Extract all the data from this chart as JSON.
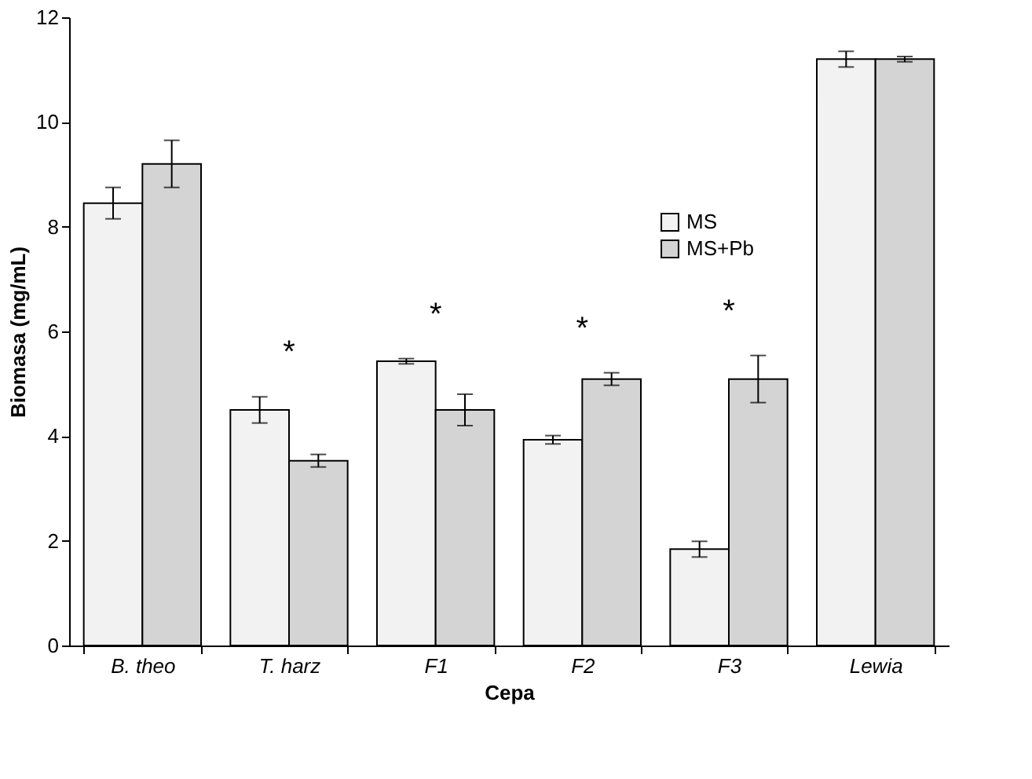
{
  "chart_data": {
    "type": "bar",
    "xlabel": "Cepa",
    "ylabel": "Biomasa (mg/mL)",
    "categories": [
      "B. theo",
      "T. harz",
      "F1",
      "F2",
      "F3",
      "Lewia"
    ],
    "series": [
      {
        "name": "MS",
        "color": "#f2f2f2",
        "values": [
          8.45,
          4.5,
          5.43,
          3.93,
          1.84,
          11.2
        ],
        "errors": [
          0.3,
          0.25,
          0.05,
          0.08,
          0.15,
          0.15
        ]
      },
      {
        "name": "MS+Pb",
        "color": "#d4d4d4",
        "values": [
          9.2,
          3.53,
          4.5,
          5.09,
          5.09,
          11.2
        ],
        "errors": [
          0.45,
          0.12,
          0.3,
          0.12,
          0.45,
          0.05
        ]
      }
    ],
    "ylim": [
      0,
      12
    ],
    "yticks": [
      0,
      2,
      4,
      6,
      8,
      10,
      12
    ],
    "grid": false,
    "legend": "top right",
    "annotations": [
      "*",
      "*",
      "*",
      "*"
    ]
  }
}
